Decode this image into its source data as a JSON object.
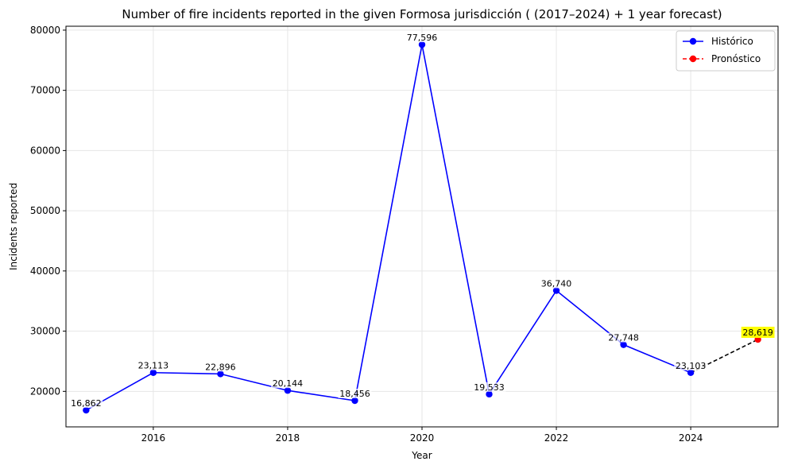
{
  "chart_data": {
    "type": "line",
    "title": "Number of fire incidents reported in the given Formosa jurisdicción  ( (2017–2024)  + 1 year forecast)",
    "xlabel": "Year",
    "ylabel": "Incidents reported",
    "xlim": [
      2014.7,
      2025.3
    ],
    "ylim": [
      14100,
      80650
    ],
    "x_ticks": [
      2016,
      2018,
      2020,
      2022,
      2024
    ],
    "y_ticks": [
      20000,
      30000,
      40000,
      50000,
      60000,
      70000,
      80000
    ],
    "grid": true,
    "legend_position": "top-right",
    "series": [
      {
        "name": "Histórico",
        "color": "#0000ff",
        "line_style": "solid",
        "marker": "circle",
        "points": [
          {
            "x": 2015,
            "y": 16862,
            "label": "16,862"
          },
          {
            "x": 2016,
            "y": 23113,
            "label": "23,113"
          },
          {
            "x": 2017,
            "y": 22896,
            "label": "22,896"
          },
          {
            "x": 2018,
            "y": 20144,
            "label": "20,144"
          },
          {
            "x": 2019,
            "y": 18456,
            "label": "18,456"
          },
          {
            "x": 2020,
            "y": 77596,
            "label": "77,596"
          },
          {
            "x": 2021,
            "y": 19533,
            "label": "19,533"
          },
          {
            "x": 2022,
            "y": 36740,
            "label": "36,740"
          },
          {
            "x": 2023,
            "y": 27748,
            "label": "27,748"
          },
          {
            "x": 2024,
            "y": 23103,
            "label": "23,103"
          }
        ]
      },
      {
        "name": "Pronóstico",
        "color": "#ff0000",
        "line_style": "dashed",
        "marker": "circle",
        "highlight_color": "#ffff00",
        "points": [
          {
            "x": 2025,
            "y": 28619,
            "label": "28,619"
          }
        ]
      }
    ],
    "connector_color": "#000000"
  }
}
